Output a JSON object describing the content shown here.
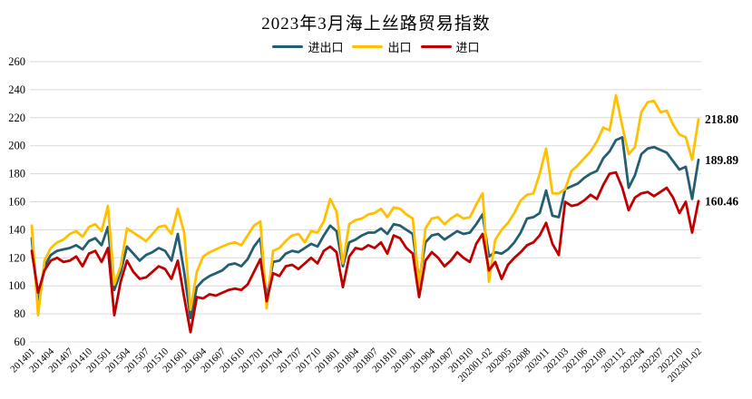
{
  "title": "2023年3月海上丝路贸易指数",
  "colors": {
    "imports_exports": "#235E73",
    "exports": "#FFC000",
    "imports": "#C00000",
    "grid": "#D9D9D9",
    "text": "#000000"
  },
  "chart_data": {
    "type": "line",
    "title": "2023年3月海上丝路贸易指数",
    "xlabel": "",
    "ylabel": "",
    "ylim": [
      60,
      260
    ],
    "y_ticks": [
      60,
      80,
      100,
      120,
      140,
      160,
      180,
      200,
      220,
      240,
      260
    ],
    "grid": "horizontal",
    "legend_position": "top",
    "x_tick_step": 3,
    "x": [
      "201401",
      "201402",
      "201403",
      "201404",
      "201405",
      "201406",
      "201407",
      "201408",
      "201409",
      "201410",
      "201411",
      "201412",
      "201501",
      "201502",
      "201503",
      "201504",
      "201505",
      "201506",
      "201507",
      "201508",
      "201509",
      "201510",
      "201511",
      "201512",
      "201601",
      "201602",
      "201603",
      "201604",
      "201605",
      "201606",
      "201607",
      "201608",
      "201609",
      "201610",
      "201611",
      "201612",
      "201701",
      "201702",
      "201703",
      "201704",
      "201705",
      "201706",
      "201707",
      "201708",
      "201709",
      "201710",
      "201711",
      "201712",
      "201801",
      "201802",
      "201803",
      "201804",
      "201805",
      "201806",
      "201807",
      "201808",
      "201809",
      "201810",
      "201811",
      "201812",
      "201901",
      "201902",
      "201903",
      "201904",
      "201905",
      "201906",
      "201907",
      "201908",
      "201909",
      "201910",
      "201911",
      "201912",
      "202001-02",
      "202003",
      "202004",
      "202005",
      "202006",
      "202007",
      "202008",
      "202009",
      "202010",
      "202011",
      "202012",
      "202101-02",
      "202103",
      "202104",
      "202105",
      "202106",
      "202107",
      "202108",
      "202109",
      "202110",
      "202111",
      "202112",
      "202201-02",
      "202203",
      "202204",
      "202205",
      "202206",
      "202207",
      "202208",
      "202209",
      "202210",
      "202211",
      "202212",
      "202301-02"
    ],
    "series": [
      {
        "name": "进出口",
        "color": "#235E73",
        "end_label": "189.89",
        "values": [
          134,
          86,
          114,
          122,
          125,
          126,
          127,
          129,
          126,
          132,
          134,
          129,
          142,
          97,
          110,
          128,
          123,
          118,
          122,
          124,
          127,
          125,
          118,
          137,
          110,
          77,
          99,
          104,
          107,
          109,
          111,
          115,
          116,
          114,
          119,
          128,
          134,
          91,
          117,
          118,
          123,
          125,
          124,
          127,
          130,
          128,
          136,
          143,
          139,
          114,
          131,
          133,
          136,
          138,
          138,
          141,
          137,
          144,
          143,
          140,
          137,
          104,
          131,
          136,
          137,
          133,
          136,
          139,
          137,
          138,
          144,
          151,
          121,
          124,
          123,
          126,
          131,
          138,
          148,
          149,
          152,
          168,
          150,
          149,
          169,
          171,
          173,
          177,
          180,
          182,
          191,
          196,
          204,
          206,
          170,
          179,
          194,
          198,
          199,
          197,
          195,
          189,
          183,
          185,
          162,
          189.89
        ]
      },
      {
        "name": "出口",
        "color": "#FFC000",
        "end_label": "218.80",
        "values": [
          143,
          79,
          118,
          127,
          131,
          133,
          137,
          139,
          135,
          142,
          144,
          139,
          157,
          101,
          114,
          141,
          138,
          135,
          132,
          137,
          142,
          143,
          137,
          155,
          138,
          83,
          110,
          121,
          124,
          126,
          128,
          130,
          131,
          129,
          136,
          143,
          146,
          84,
          125,
          127,
          132,
          136,
          137,
          131,
          139,
          138,
          146,
          162,
          153,
          116,
          144,
          147,
          148,
          151,
          152,
          155,
          149,
          156,
          155,
          151,
          148,
          100,
          141,
          148,
          149,
          144,
          148,
          151,
          148,
          149,
          158,
          166,
          103,
          133,
          140,
          145,
          152,
          161,
          165,
          166,
          180,
          198,
          166,
          166,
          169,
          182,
          186,
          191,
          196,
          203,
          213,
          211,
          236,
          214,
          194,
          199,
          224,
          231,
          232,
          224,
          225,
          215,
          208,
          206,
          190,
          218.8
        ]
      },
      {
        "name": "进口",
        "color": "#C00000",
        "end_label": "160.46",
        "values": [
          125,
          95,
          111,
          118,
          120,
          117,
          118,
          121,
          114,
          123,
          125,
          117,
          127,
          79,
          103,
          118,
          110,
          105,
          106,
          110,
          114,
          112,
          105,
          118,
          92,
          67,
          92,
          91,
          94,
          93,
          95,
          97,
          98,
          97,
          101,
          110,
          119,
          89,
          109,
          107,
          114,
          115,
          112,
          116,
          120,
          116,
          125,
          128,
          124,
          99,
          121,
          127,
          126,
          129,
          127,
          131,
          123,
          136,
          134,
          127,
          123,
          92,
          118,
          124,
          120,
          114,
          118,
          124,
          120,
          117,
          130,
          137,
          111,
          117,
          105,
          115,
          120,
          124,
          129,
          131,
          136,
          145,
          130,
          122,
          160,
          157,
          158,
          161,
          165,
          162,
          172,
          180,
          181,
          170,
          154,
          163,
          166,
          167,
          164,
          167,
          170,
          163,
          152,
          160,
          138,
          160.46
        ]
      }
    ]
  }
}
